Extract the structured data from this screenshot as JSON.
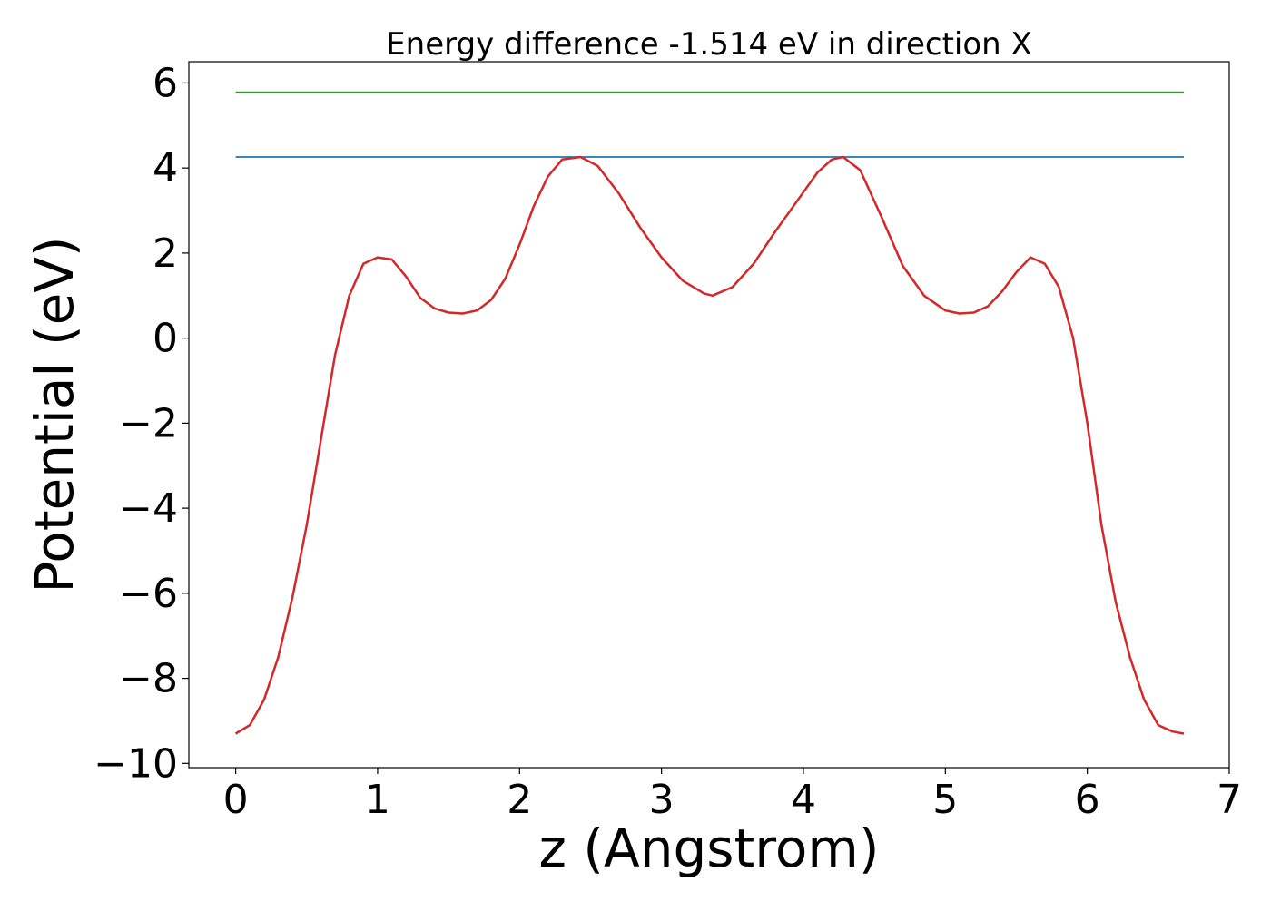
{
  "chart_data": {
    "type": "line",
    "title": "Energy difference -1.514 eV in direction X",
    "xlabel": "z (Angstrom)",
    "ylabel": "Potential (eV)",
    "xlim": [
      -0.33,
      7.0
    ],
    "ylim": [
      -10.1,
      6.5
    ],
    "xticks": [
      0,
      1,
      2,
      3,
      4,
      5,
      6,
      7
    ],
    "yticks": [
      6,
      4,
      2,
      0,
      -2,
      -4,
      -6,
      -8,
      -10
    ],
    "xtick_labels": [
      "0",
      "1",
      "2",
      "3",
      "4",
      "5",
      "6",
      "7"
    ],
    "ytick_labels": [
      "6",
      "4",
      "2",
      "0",
      "−2",
      "−4",
      "−6",
      "−8",
      "−10"
    ],
    "grid": false,
    "series": [
      {
        "color": "#2ca02c",
        "x": [
          0,
          6.68
        ],
        "y": [
          5.78,
          5.78
        ]
      },
      {
        "color": "#1f77b4",
        "x": [
          0,
          6.68
        ],
        "y": [
          4.26,
          4.26
        ]
      },
      {
        "color": "#d62728",
        "x": [
          0,
          0.1,
          0.2,
          0.3,
          0.4,
          0.5,
          0.6,
          0.7,
          0.8,
          0.9,
          1.0,
          1.1,
          1.2,
          1.3,
          1.4,
          1.5,
          1.6,
          1.7,
          1.8,
          1.9,
          2.0,
          2.1,
          2.2,
          2.3,
          2.43,
          2.55,
          2.7,
          2.85,
          3.0,
          3.15,
          3.3,
          3.36,
          3.5,
          3.65,
          3.8,
          3.95,
          4.1,
          4.2,
          4.28,
          4.4,
          4.55,
          4.7,
          4.85,
          5.0,
          5.1,
          5.2,
          5.3,
          5.4,
          5.5,
          5.6,
          5.7,
          5.8,
          5.9,
          6.0,
          6.1,
          6.2,
          6.3,
          6.4,
          6.5,
          6.6,
          6.68
        ],
        "y": [
          -9.3,
          -9.1,
          -8.5,
          -7.5,
          -6.1,
          -4.4,
          -2.4,
          -0.4,
          1.0,
          1.75,
          1.9,
          1.85,
          1.45,
          0.95,
          0.7,
          0.6,
          0.58,
          0.65,
          0.9,
          1.4,
          2.2,
          3.1,
          3.8,
          4.2,
          4.26,
          4.05,
          3.4,
          2.6,
          1.9,
          1.35,
          1.05,
          1.0,
          1.2,
          1.75,
          2.5,
          3.2,
          3.9,
          4.2,
          4.26,
          3.95,
          2.85,
          1.7,
          1.0,
          0.65,
          0.58,
          0.6,
          0.75,
          1.1,
          1.55,
          1.9,
          1.75,
          1.2,
          0.0,
          -2.0,
          -4.4,
          -6.2,
          -7.5,
          -8.5,
          -9.1,
          -9.25,
          -9.3
        ]
      }
    ]
  }
}
